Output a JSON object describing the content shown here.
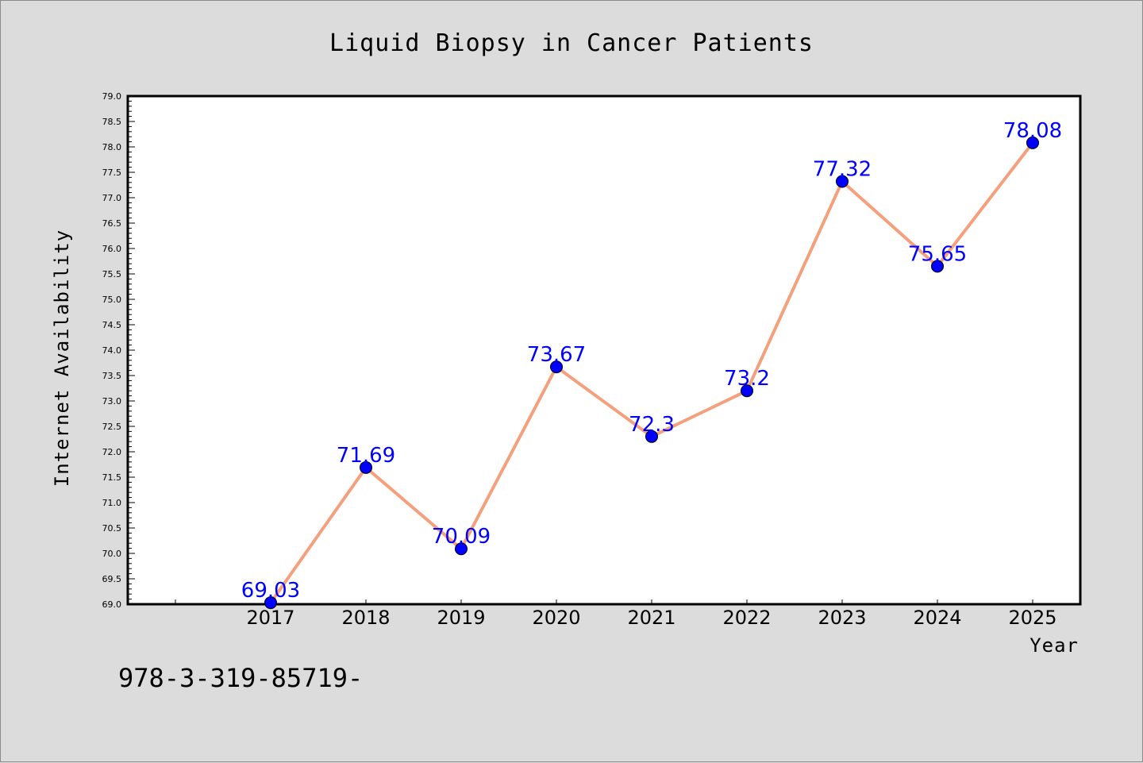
{
  "chart_data": {
    "type": "line",
    "title": "Liquid Biopsy in Cancer Patients",
    "xlabel": "Year",
    "ylabel": "Internet Availability",
    "categories": [
      "2017",
      "2018",
      "2019",
      "2020",
      "2021",
      "2022",
      "2023",
      "2024",
      "2025"
    ],
    "series": [
      {
        "values": [
          69.03,
          71.69,
          70.09,
          73.67,
          72.3,
          73.2,
          77.32,
          75.65,
          78.08
        ],
        "data_labels": [
          "69.03",
          "71.69",
          "70.09",
          "73.67",
          "72.3",
          "73.2",
          "77.32",
          "75.65",
          "78.08"
        ],
        "line_color": "#f4a07c",
        "marker_color": "#0000ff"
      }
    ],
    "ylim": [
      69.0,
      79.0
    ],
    "yticks": [
      "69.0",
      "69.5",
      "70.0",
      "70.5",
      "71.0",
      "71.5",
      "72.0",
      "72.5",
      "73.0",
      "73.5",
      "74.0",
      "74.5",
      "75.0",
      "75.5",
      "76.0",
      "76.5",
      "77.0",
      "77.5",
      "78.0",
      "78.5",
      "79.0"
    ],
    "grid": false,
    "legend": "none",
    "label_color": "#0000ff",
    "background_color": "#dcdcdc",
    "plot_background_color": "#ffffff"
  },
  "footnote": "978-3-319-85719-"
}
